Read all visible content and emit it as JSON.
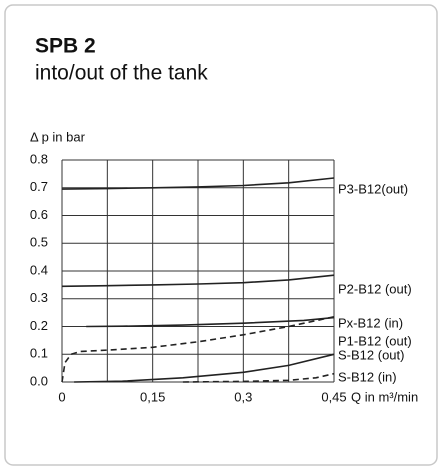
{
  "chart_data": {
    "type": "line",
    "title": "SPB 2",
    "subtitle": "into/out of the tank",
    "y_label": "Δ p in bar",
    "x_label": "Q in m³/min",
    "xlim": [
      0,
      0.45
    ],
    "ylim": [
      0,
      0.8
    ],
    "xticks": [
      0,
      {
        "value": 0.15,
        "label": "0,15"
      },
      {
        "value": 0.3,
        "label": "0,3"
      },
      {
        "value": 0.45,
        "label": "0,45"
      }
    ],
    "xminor": [
      0.075,
      0.225,
      0.375
    ],
    "yticks": [
      {
        "value": 0,
        "label": "0.0"
      },
      0.1,
      0.2,
      0.3,
      0.4,
      0.5,
      0.6,
      0.7,
      0.8
    ],
    "grid": true,
    "series": [
      {
        "name": "P3-B12(out)",
        "color": "#222222",
        "dashed": false,
        "x": [
          0,
          0.075,
          0.15,
          0.225,
          0.3,
          0.375,
          0.45
        ],
        "values": [
          0.695,
          0.697,
          0.7,
          0.703,
          0.708,
          0.718,
          0.735
        ]
      },
      {
        "name": "P2-B12 (out)",
        "color": "#222222",
        "dashed": false,
        "x": [
          0,
          0.075,
          0.15,
          0.225,
          0.3,
          0.375,
          0.45
        ],
        "values": [
          0.345,
          0.347,
          0.35,
          0.353,
          0.358,
          0.368,
          0.385
        ]
      },
      {
        "name": "Px-B12 (in)",
        "color": "#222222",
        "dashed": true,
        "x": [
          0,
          0.005,
          0.015,
          0.03,
          0.075,
          0.15,
          0.225,
          0.3,
          0.375,
          0.45
        ],
        "values": [
          0,
          0.07,
          0.1,
          0.11,
          0.115,
          0.125,
          0.145,
          0.17,
          0.2,
          0.235
        ]
      },
      {
        "name": "P1-B12 (out)",
        "color": "#222222",
        "dashed": false,
        "x": [
          0.04,
          0.1,
          0.2,
          0.3,
          0.4,
          0.45
        ],
        "values": [
          0.2,
          0.201,
          0.205,
          0.212,
          0.222,
          0.232
        ]
      },
      {
        "name": "S-B12 (out)",
        "color": "#222222",
        "dashed": false,
        "x": [
          0.02,
          0.1,
          0.2,
          0.3,
          0.375,
          0.45
        ],
        "values": [
          0,
          0.003,
          0.015,
          0.035,
          0.06,
          0.1
        ]
      },
      {
        "name": "S-B12 (in)",
        "color": "#222222",
        "dashed": true,
        "x": [
          0.2,
          0.3,
          0.375,
          0.42,
          0.45
        ],
        "values": [
          0,
          0.002,
          0.006,
          0.015,
          0.03
        ]
      }
    ]
  }
}
